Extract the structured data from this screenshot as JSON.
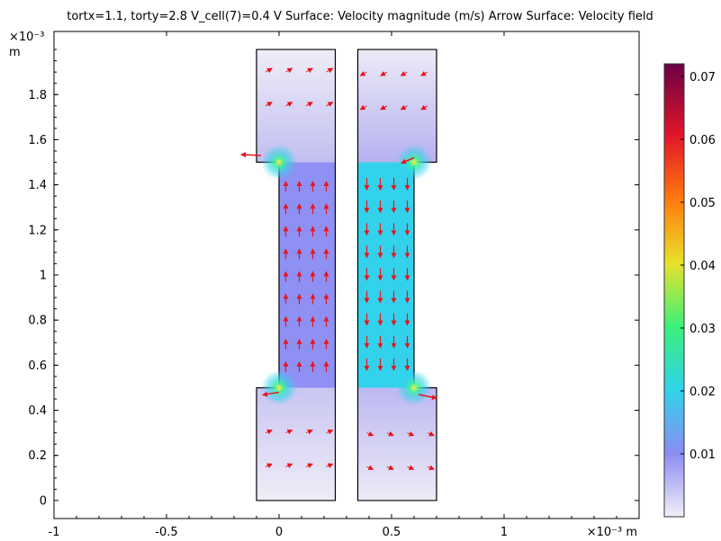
{
  "title": "tortx=1.1, torty=2.8 V_cell(7)=0.4 V  Surface: Velocity magnitude (m/s)  Arrow Surface: Velocity field",
  "chart_data": {
    "type": "heatmap",
    "title": "tortx=1.1, torty=2.8 V_cell(7)=0.4 V  Surface: Velocity magnitude (m/s)  Arrow Surface: Velocity field",
    "x_axis": {
      "range": [
        -1.0,
        1.6
      ],
      "ticks": [
        -1,
        -0.5,
        0,
        0.5,
        1
      ],
      "tick_labels": [
        "-1",
        "-0.5",
        "0",
        "0.5",
        "1"
      ],
      "unit_label": "×10⁻³ m"
    },
    "y_axis": {
      "range": [
        -0.08,
        2.08
      ],
      "ticks": [
        0,
        0.2,
        0.4,
        0.6,
        0.8,
        1.0,
        1.2,
        1.4,
        1.6,
        1.8
      ],
      "tick_labels": [
        "0",
        "0.2",
        "0.4",
        "0.6",
        "0.8",
        "1",
        "1.2",
        "1.4",
        "1.6",
        "1.8"
      ],
      "exponent_label": "×10⁻³",
      "unit_label": "m"
    },
    "colorbar": {
      "range": [
        0,
        0.072
      ],
      "ticks": [
        0.01,
        0.02,
        0.03,
        0.04,
        0.05,
        0.06,
        0.07
      ],
      "tick_labels": [
        "0.01",
        "0.02",
        "0.03",
        "0.04",
        "0.05",
        "0.06",
        "0.07"
      ],
      "colormap": [
        "#f2eff8",
        "#8c8cf2",
        "#2fd3ea",
        "#3cf07a",
        "#e8e22a",
        "#ff7a0c",
        "#e3162a",
        "#6a0044"
      ]
    },
    "geometry": {
      "left_domain": {
        "x_outer": [
          -0.1,
          0.25
        ],
        "x_channel": [
          0.0,
          0.25
        ],
        "y_bottom_block": [
          0.0,
          0.5
        ],
        "y_channel": [
          0.5,
          1.5
        ],
        "y_top_block": [
          1.5,
          2.0
        ]
      },
      "gap": [
        0.25,
        0.35
      ],
      "right_domain": {
        "x_outer": [
          0.35,
          0.7
        ],
        "x_channel": [
          0.35,
          0.6
        ],
        "y_bottom_block": [
          0.0,
          0.5
        ],
        "y_channel": [
          0.5,
          1.5
        ],
        "y_top_block": [
          1.5,
          2.0
        ]
      }
    },
    "field": {
      "left_channel_speed": 0.012,
      "right_channel_speed": 0.021,
      "corner_peak_speed": 0.045,
      "left_flow_direction": "up",
      "right_flow_direction": "down",
      "arrow_color": "#e8141c"
    },
    "grid": false
  }
}
